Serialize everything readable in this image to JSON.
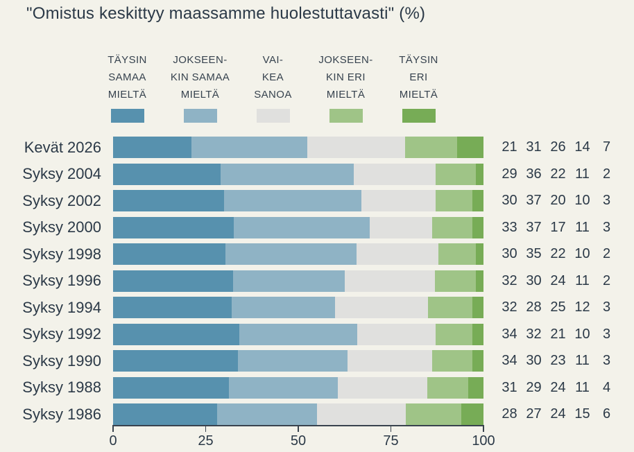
{
  "title": "\"Omistus keskittyy maassamme huolestuttavasti\" (%)",
  "colors": {
    "background": "#f3f2ea",
    "text": "#2b3947",
    "axis": "#39434e",
    "segment_colors": [
      "#5791ae",
      "#8fb3c5",
      "#e0e0de",
      "#9fc487",
      "#77ac56"
    ]
  },
  "chart_data": {
    "type": "bar",
    "orientation": "horizontal",
    "stacked": true,
    "title": "\"Omistus keskittyy maassamme huolestuttavasti\" (%)",
    "legend_position": "top",
    "legend": [
      {
        "label": "TÄYSIN\nSAMAA\nMIELTÄ",
        "color": "#5791ae"
      },
      {
        "label": "JOKSEEN-\nKIN SAMAA\nMIELTÄ",
        "color": "#8fb3c5"
      },
      {
        "label": "VAI-\nKEA\nSANOA",
        "color": "#e0e0de"
      },
      {
        "label": "JOKSEEN-\nKIN ERI\nMIELTÄ",
        "color": "#9fc487"
      },
      {
        "label": "TÄYSIN\nERI\nMIELTÄ",
        "color": "#77ac56"
      }
    ],
    "categories": [
      "Kevät 2026",
      "Syksy 2004",
      "Syksy 2002",
      "Syksy 2000",
      "Syksy 1998",
      "Syksy 1996",
      "Syksy 1994",
      "Syksy 1992",
      "Syksy 1990",
      "Syksy 1988",
      "Syksy 1986"
    ],
    "rows": [
      {
        "label": "Kevät 2026",
        "values": [
          21,
          31,
          26,
          14,
          7
        ]
      },
      {
        "label": "Syksy 2004",
        "values": [
          29,
          36,
          22,
          11,
          2
        ]
      },
      {
        "label": "Syksy 2002",
        "values": [
          30,
          37,
          20,
          10,
          3
        ]
      },
      {
        "label": "Syksy 2000",
        "values": [
          33,
          37,
          17,
          11,
          3
        ]
      },
      {
        "label": "Syksy 1998",
        "values": [
          30,
          35,
          22,
          10,
          2
        ]
      },
      {
        "label": "Syksy 1996",
        "values": [
          32,
          30,
          24,
          11,
          2
        ]
      },
      {
        "label": "Syksy 1994",
        "values": [
          32,
          28,
          25,
          12,
          3
        ]
      },
      {
        "label": "Syksy 1992",
        "values": [
          34,
          32,
          21,
          10,
          3
        ]
      },
      {
        "label": "Syksy 1990",
        "values": [
          34,
          30,
          23,
          11,
          3
        ]
      },
      {
        "label": "Syksy 1988",
        "values": [
          31,
          29,
          24,
          11,
          4
        ]
      },
      {
        "label": "Syksy 1986",
        "values": [
          28,
          27,
          24,
          15,
          6
        ]
      }
    ],
    "xticks": [
      0,
      25,
      50,
      75,
      100
    ],
    "xlim": [
      0,
      100
    ],
    "grid": false
  }
}
